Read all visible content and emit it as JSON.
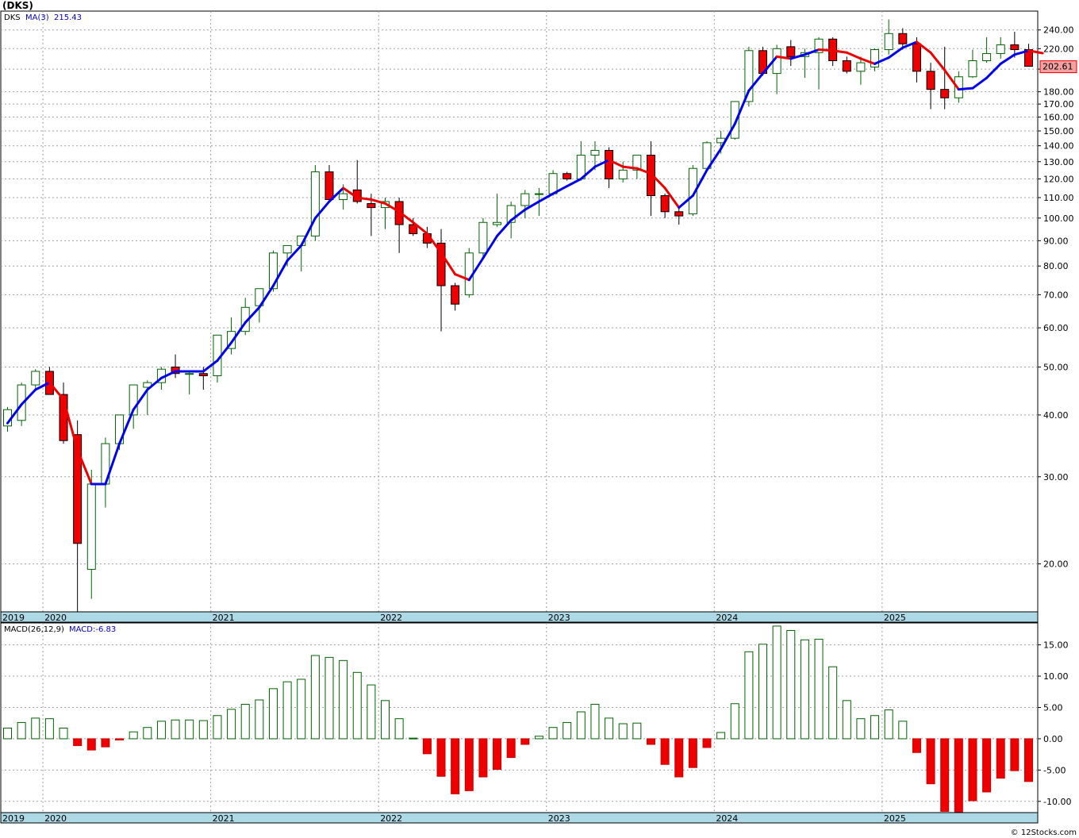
{
  "header": {
    "symbol_title": "(DKS)",
    "price_legend": {
      "symbol": "DKS",
      "ma_label": "MA(3)",
      "ma_value": "215.43"
    },
    "macd_legend": {
      "label": "MACD(26,12,9)",
      "value": "MACD:-6.83"
    },
    "last_price": "202.61",
    "footer": "© 12Stocks.com"
  },
  "colors": {
    "up_outline": "#006400",
    "down_fill": "#ee0000",
    "ma_up": "#0000ee",
    "ma_down": "#ee0000",
    "axis_band": "#add8e6",
    "legend_text": "#0000cc"
  },
  "chart_data": [
    {
      "type": "candlestick",
      "scale": "log",
      "ylim": [
        16,
        262
      ],
      "y_ticks": [
        "20.00",
        "30.00",
        "40.00",
        "50.00",
        "60.00",
        "70.00",
        "80.00",
        "90.00",
        "100.00",
        "110.00",
        "120.00",
        "130.00",
        "140.00",
        "150.00",
        "160.00",
        "170.00",
        "180.00",
        "200.00",
        "220.00",
        "240.00"
      ],
      "year_labels": [
        {
          "label": "2019",
          "month": 0
        },
        {
          "label": "2020",
          "month": 3
        },
        {
          "label": "2021",
          "month": 15
        },
        {
          "label": "2022",
          "month": 27
        },
        {
          "label": "2023",
          "month": 39
        },
        {
          "label": "2024",
          "month": 51
        },
        {
          "label": "2025",
          "month": 63
        }
      ],
      "candles": [
        [
          38,
          41.5,
          37,
          41
        ],
        [
          39,
          46.5,
          38,
          46
        ],
        [
          46,
          49.5,
          45,
          49
        ],
        [
          49,
          50,
          44,
          44
        ],
        [
          44,
          46.5,
          35,
          35.5
        ],
        [
          36.5,
          39,
          16,
          22
        ],
        [
          19.5,
          31,
          17,
          29
        ],
        [
          29,
          36,
          26,
          35
        ],
        [
          35,
          40,
          34,
          40
        ],
        [
          40,
          46,
          37.5,
          46
        ],
        [
          45.5,
          47,
          40,
          46.5
        ],
        [
          46.5,
          50,
          45,
          49.5
        ],
        [
          50,
          53,
          47.5,
          48.5
        ],
        [
          48.5,
          49,
          44,
          48.5
        ],
        [
          48.5,
          50,
          45,
          48
        ],
        [
          48,
          58,
          46.5,
          58
        ],
        [
          54.5,
          63,
          53,
          59
        ],
        [
          59,
          69,
          58,
          66
        ],
        [
          66.5,
          72,
          61.5,
          72
        ],
        [
          72,
          86,
          71,
          85
        ],
        [
          85,
          88,
          80,
          88
        ],
        [
          88,
          90,
          78,
          92
        ],
        [
          92,
          128,
          90,
          124
        ],
        [
          124,
          128,
          109,
          109
        ],
        [
          109,
          117,
          104,
          112
        ],
        [
          114,
          131,
          107,
          108
        ],
        [
          107,
          112,
          92,
          105
        ],
        [
          105,
          110,
          95,
          108
        ],
        [
          108,
          110,
          85,
          97
        ],
        [
          97,
          100,
          92,
          93
        ],
        [
          93,
          96,
          87,
          89
        ],
        [
          89,
          95,
          59,
          73
        ],
        [
          73,
          74,
          65,
          67
        ],
        [
          70,
          87,
          69,
          85
        ],
        [
          85,
          100,
          83,
          98
        ],
        [
          97,
          112,
          96,
          98
        ],
        [
          98,
          108,
          91,
          106
        ],
        [
          106,
          114,
          100,
          112
        ],
        [
          112,
          115,
          101,
          112
        ],
        [
          112,
          125,
          111,
          123
        ],
        [
          123,
          124,
          119,
          120
        ],
        [
          120,
          143,
          119,
          134
        ],
        [
          134,
          143,
          125,
          137
        ],
        [
          137,
          139,
          115,
          120
        ],
        [
          120,
          130,
          118,
          125
        ],
        [
          125,
          132,
          120,
          134
        ],
        [
          134,
          143,
          101,
          111
        ],
        [
          111,
          112,
          100,
          103
        ],
        [
          103,
          105,
          97,
          101
        ],
        [
          102,
          128,
          101,
          126
        ],
        [
          126,
          143,
          125,
          142
        ],
        [
          142,
          150,
          135,
          145
        ],
        [
          145,
          172,
          144,
          172
        ],
        [
          172,
          222,
          168,
          218
        ],
        [
          218,
          222,
          194,
          196
        ],
        [
          196,
          224,
          178,
          220
        ],
        [
          222,
          229,
          203,
          212
        ],
        [
          212,
          220,
          192,
          216
        ],
        [
          216,
          232,
          182,
          230
        ],
        [
          230,
          232,
          203,
          208
        ],
        [
          208,
          212,
          196,
          198
        ],
        [
          198,
          212,
          186,
          206
        ],
        [
          202,
          220,
          198,
          219
        ],
        [
          219,
          252,
          214,
          236
        ],
        [
          236,
          242,
          219,
          225
        ],
        [
          225,
          232,
          188,
          198
        ],
        [
          198,
          206,
          166,
          182
        ],
        [
          182,
          222,
          166,
          175
        ],
        [
          175,
          198,
          171,
          193
        ],
        [
          193,
          219,
          192,
          208
        ],
        [
          208,
          232,
          206,
          215
        ],
        [
          215,
          232,
          210,
          224
        ],
        [
          224,
          238,
          211,
          219
        ],
        [
          219,
          225,
          203,
          202.61
        ]
      ],
      "ma3": [
        38.5,
        42,
        45,
        46.5,
        43,
        34,
        29,
        29,
        35,
        41,
        45,
        47.5,
        49,
        49,
        49,
        51.5,
        56,
        61.5,
        66,
        73,
        82,
        88,
        100,
        108,
        115,
        110,
        109,
        107,
        103,
        98,
        93,
        85,
        77,
        75,
        83,
        92,
        99,
        104,
        108,
        112,
        116,
        120,
        127,
        131,
        127,
        126,
        123,
        115,
        105,
        111,
        125,
        138,
        155,
        181,
        196,
        212,
        210,
        214,
        219,
        218,
        216,
        210,
        205,
        211,
        221,
        227,
        216,
        199,
        182,
        183,
        192,
        205,
        214,
        218,
        215.43
      ]
    },
    {
      "type": "bar",
      "series_label": "MACD(26,12,9)",
      "ylim": [
        -11.8,
        18.5
      ],
      "y_ticks": [
        "-10.00",
        "-5.00",
        "0.00",
        "5.00",
        "10.00",
        "15.00"
      ],
      "values": [
        1.7,
        2.6,
        3.3,
        3.2,
        1.7,
        -1.1,
        -1.8,
        -1.3,
        -0.2,
        1.1,
        1.8,
        2.8,
        3.0,
        3.0,
        2.9,
        3.7,
        4.7,
        5.5,
        6.2,
        8.0,
        9.1,
        9.5,
        13.3,
        13.0,
        12.5,
        10.6,
        8.6,
        6.1,
        3.2,
        0.1,
        -2.4,
        -6.0,
        -8.8,
        -8.3,
        -6.1,
        -4.9,
        -3.0,
        -0.9,
        0.4,
        1.8,
        2.6,
        4.3,
        5.5,
        3.3,
        2.4,
        2.5,
        -0.9,
        -4.1,
        -6.1,
        -4.6,
        -1.4,
        1.0,
        5.6,
        13.9,
        15.1,
        18.0,
        17.3,
        15.8,
        15.9,
        11.5,
        6.1,
        3.2,
        3.7,
        4.6,
        2.8,
        -2.2,
        -7.2,
        -11.6,
        -11.7,
        -9.9,
        -8.5,
        -6.3,
        -5.1,
        -6.83
      ]
    }
  ]
}
